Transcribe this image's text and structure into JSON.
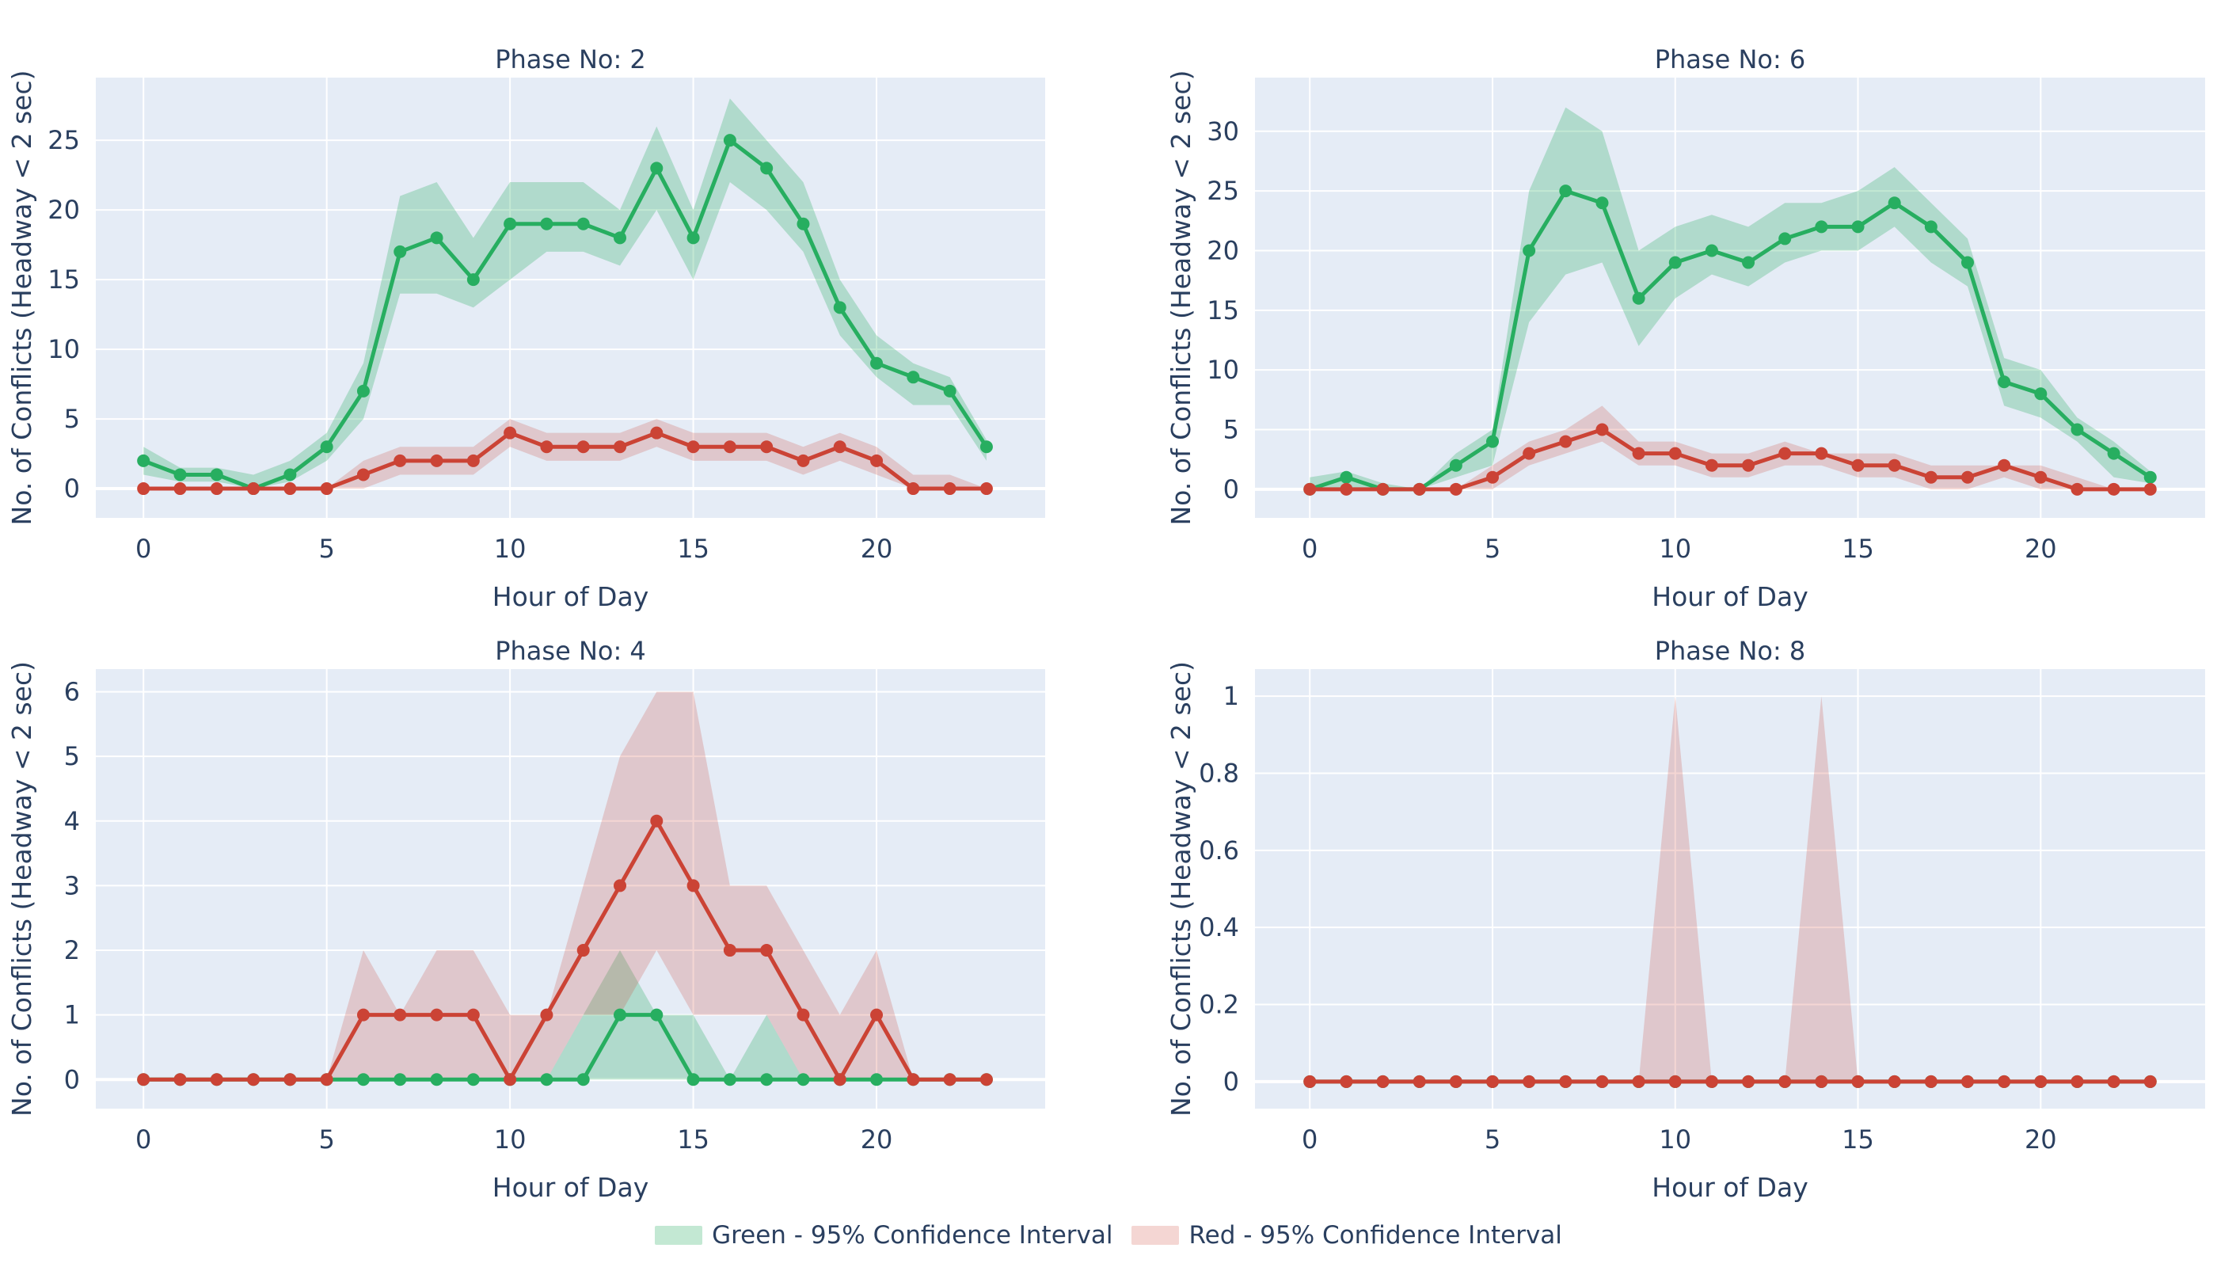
{
  "colors": {
    "green_line": "#27ae60",
    "green_fill": "rgba(39,174,96,0.28)",
    "red_line": "#cb4335",
    "red_fill": "rgba(203,67,53,0.22)",
    "plot_bg": "#e5ecf6",
    "grid": "#ffffff",
    "text": "#2a3f5f"
  },
  "legend": [
    {
      "label": "Green - 95% Confidence Interval",
      "color": "rgba(39,174,96,0.28)"
    },
    {
      "label": "Red - 95% Confidence Interval",
      "color": "rgba(203,67,53,0.22)"
    }
  ],
  "chart_data": [
    {
      "type": "line",
      "title": "Phase No: 2",
      "xlabel": "Hour of Day",
      "ylabel": "No. of Conflicts (Headway < 2 sec)",
      "x": [
        0,
        1,
        2,
        3,
        4,
        5,
        6,
        7,
        8,
        9,
        10,
        11,
        12,
        13,
        14,
        15,
        16,
        17,
        18,
        19,
        20,
        21,
        22,
        23
      ],
      "xticks": [
        0,
        5,
        10,
        15,
        20
      ],
      "xlim": [
        -1.3,
        24.6
      ],
      "yticks": [
        0,
        5,
        10,
        15,
        20,
        25
      ],
      "ylim": [
        -2.1,
        29.5
      ],
      "series": [
        {
          "name": "Green",
          "color": "green",
          "values": [
            2,
            1,
            1,
            0,
            1,
            3,
            7,
            17,
            18,
            15,
            19,
            19,
            19,
            18,
            23,
            18,
            25,
            23,
            19,
            13,
            9,
            8,
            7,
            3
          ],
          "ci_lower": [
            1,
            0.5,
            0.5,
            0,
            0.5,
            2,
            5,
            14,
            14,
            13,
            15,
            17,
            17,
            16,
            20,
            15,
            22,
            20,
            17,
            11,
            8,
            6,
            6,
            2
          ],
          "ci_upper": [
            3,
            1.5,
            1.5,
            1,
            2,
            4,
            9,
            21,
            22,
            18,
            22,
            22,
            22,
            20,
            26,
            20,
            28,
            25,
            22,
            15,
            11,
            9,
            8,
            3.5
          ]
        },
        {
          "name": "Red",
          "color": "red",
          "values": [
            0,
            0,
            0,
            0,
            0,
            0,
            1,
            2,
            2,
            2,
            4,
            3,
            3,
            3,
            4,
            3,
            3,
            3,
            2,
            3,
            2,
            0,
            0,
            0
          ],
          "ci_lower": [
            0,
            0,
            0,
            0,
            0,
            0,
            0,
            1,
            1,
            1,
            3,
            2,
            2,
            2,
            3,
            2,
            2,
            2,
            1,
            2,
            1,
            0,
            0,
            0
          ],
          "ci_upper": [
            0,
            0,
            0,
            0,
            0,
            0,
            2,
            3,
            3,
            3,
            5,
            4,
            4,
            4,
            5,
            4,
            4,
            4,
            3,
            4,
            3,
            1,
            1,
            0
          ]
        }
      ]
    },
    {
      "type": "line",
      "title": "Phase No: 6",
      "xlabel": "Hour of Day",
      "ylabel": "No. of Conflicts (Headway < 2 sec)",
      "x": [
        0,
        1,
        2,
        3,
        4,
        5,
        6,
        7,
        8,
        9,
        10,
        11,
        12,
        13,
        14,
        15,
        16,
        17,
        18,
        19,
        20,
        21,
        22,
        23
      ],
      "xticks": [
        0,
        5,
        10,
        15,
        20
      ],
      "xlim": [
        -1.5,
        24.5
      ],
      "yticks": [
        0,
        5,
        10,
        15,
        20,
        25,
        30
      ],
      "ylim": [
        -2.4,
        34.5
      ],
      "series": [
        {
          "name": "Green",
          "color": "green",
          "values": [
            0,
            1,
            0,
            0,
            2,
            4,
            20,
            25,
            24,
            16,
            19,
            20,
            19,
            21,
            22,
            22,
            24,
            22,
            19,
            9,
            8,
            5,
            3,
            1
          ],
          "ci_lower": [
            0,
            0,
            0,
            0,
            1,
            2,
            14,
            18,
            19,
            12,
            16,
            18,
            17,
            19,
            20,
            20,
            22,
            19,
            17,
            7,
            6,
            4,
            1,
            0.5
          ],
          "ci_upper": [
            1,
            1.5,
            0.5,
            0,
            3,
            5,
            25,
            32,
            30,
            20,
            22,
            23,
            22,
            24,
            24,
            25,
            27,
            24,
            21,
            11,
            10,
            6,
            4,
            1.5
          ]
        },
        {
          "name": "Red",
          "color": "red",
          "values": [
            0,
            0,
            0,
            0,
            0,
            1,
            3,
            4,
            5,
            3,
            3,
            2,
            2,
            3,
            3,
            2,
            2,
            1,
            1,
            2,
            1,
            0,
            0,
            0
          ],
          "ci_lower": [
            0,
            0,
            0,
            0,
            0,
            0,
            2,
            3,
            4,
            2,
            2,
            1,
            1,
            2,
            2,
            1,
            1,
            0,
            0,
            1,
            0,
            0,
            0,
            0
          ],
          "ci_upper": [
            0,
            0,
            0,
            0,
            0,
            2,
            4,
            5,
            7,
            4,
            4,
            3,
            3,
            4,
            3,
            3,
            3,
            2,
            2,
            2,
            2,
            1,
            0,
            0
          ]
        }
      ]
    },
    {
      "type": "line",
      "title": "Phase No: 4",
      "xlabel": "Hour of Day",
      "ylabel": "No. of Conflicts (Headway < 2 sec)",
      "x": [
        0,
        1,
        2,
        3,
        4,
        5,
        6,
        7,
        8,
        9,
        10,
        11,
        12,
        13,
        14,
        15,
        16,
        17,
        18,
        19,
        20,
        21,
        22,
        23
      ],
      "xticks": [
        0,
        5,
        10,
        15,
        20
      ],
      "xlim": [
        -1.3,
        24.6
      ],
      "yticks": [
        0,
        1,
        2,
        3,
        4,
        5,
        6
      ],
      "ylim": [
        -0.45,
        6.35
      ],
      "series": [
        {
          "name": "Green",
          "color": "green",
          "values": [
            0,
            0,
            0,
            0,
            0,
            0,
            0,
            0,
            0,
            0,
            0,
            0,
            0,
            1,
            1,
            0,
            0,
            0,
            0,
            0,
            0,
            0,
            0,
            0
          ],
          "ci_lower": [
            0,
            0,
            0,
            0,
            0,
            0,
            0,
            0,
            0,
            0,
            0,
            0,
            0,
            0,
            0,
            0,
            0,
            0,
            0,
            0,
            0,
            0,
            0,
            0
          ],
          "ci_upper": [
            0,
            0,
            0,
            0,
            0,
            0,
            0,
            0,
            0,
            0,
            0,
            0,
            1,
            2,
            1,
            1,
            0,
            1,
            0,
            0,
            0,
            0,
            0,
            0
          ]
        },
        {
          "name": "Red",
          "color": "red",
          "values": [
            0,
            0,
            0,
            0,
            0,
            0,
            1,
            1,
            1,
            1,
            0,
            1,
            2,
            3,
            4,
            3,
            2,
            2,
            1,
            0,
            1,
            0,
            0,
            0
          ],
          "ci_lower": [
            0,
            0,
            0,
            0,
            0,
            0,
            0,
            0,
            0,
            0,
            0,
            0,
            1,
            1,
            2,
            1,
            1,
            1,
            0,
            0,
            0,
            0,
            0,
            0
          ],
          "ci_upper": [
            0,
            0,
            0,
            0,
            0,
            0,
            2,
            1,
            2,
            2,
            1,
            1,
            3,
            5,
            6,
            6,
            3,
            3,
            2,
            1,
            2,
            0,
            0,
            0
          ]
        }
      ]
    },
    {
      "type": "line",
      "title": "Phase No: 8",
      "xlabel": "Hour of Day",
      "ylabel": "No. of Conflicts (Headway < 2 sec)",
      "x": [
        0,
        1,
        2,
        3,
        4,
        5,
        6,
        7,
        8,
        9,
        10,
        11,
        12,
        13,
        14,
        15,
        16,
        17,
        18,
        19,
        20,
        21,
        22,
        23
      ],
      "xticks": [
        0,
        5,
        10,
        15,
        20
      ],
      "xlim": [
        -1.5,
        24.5
      ],
      "yticks": [
        0,
        0.2,
        0.4,
        0.6,
        0.8,
        1
      ],
      "yticklabels": [
        "0",
        "0.2",
        "0.4",
        "0.6",
        "0.8",
        "1"
      ],
      "ylim": [
        -0.07,
        1.07
      ],
      "series": [
        {
          "name": "Green",
          "color": "green",
          "values": [
            0,
            0,
            0,
            0,
            0,
            0,
            0,
            0,
            0,
            0,
            0,
            0,
            0,
            0,
            0,
            0,
            0,
            0,
            0,
            0,
            0,
            0,
            0,
            0
          ],
          "ci_lower": [
            0,
            0,
            0,
            0,
            0,
            0,
            0,
            0,
            0,
            0,
            0,
            0,
            0,
            0,
            0,
            0,
            0,
            0,
            0,
            0,
            0,
            0,
            0,
            0
          ],
          "ci_upper": [
            0,
            0,
            0,
            0,
            0,
            0,
            0,
            0,
            0,
            0,
            0,
            0,
            0,
            0,
            0,
            0,
            0,
            0,
            0,
            0,
            0,
            0,
            0,
            0
          ]
        },
        {
          "name": "Red",
          "color": "red",
          "values": [
            0,
            0,
            0,
            0,
            0,
            0,
            0,
            0,
            0,
            0,
            0,
            0,
            0,
            0,
            0,
            0,
            0,
            0,
            0,
            0,
            0,
            0,
            0,
            0
          ],
          "ci_lower": [
            0,
            0,
            0,
            0,
            0,
            0,
            0,
            0,
            0,
            0,
            0,
            0,
            0,
            0,
            0,
            0,
            0,
            0,
            0,
            0,
            0,
            0,
            0,
            0
          ],
          "ci_upper": [
            0,
            0,
            0,
            0,
            0,
            0,
            0,
            0,
            0,
            0,
            1,
            0,
            0,
            0,
            1,
            0,
            0,
            0,
            0,
            0,
            0,
            0,
            0,
            0
          ]
        }
      ]
    }
  ]
}
